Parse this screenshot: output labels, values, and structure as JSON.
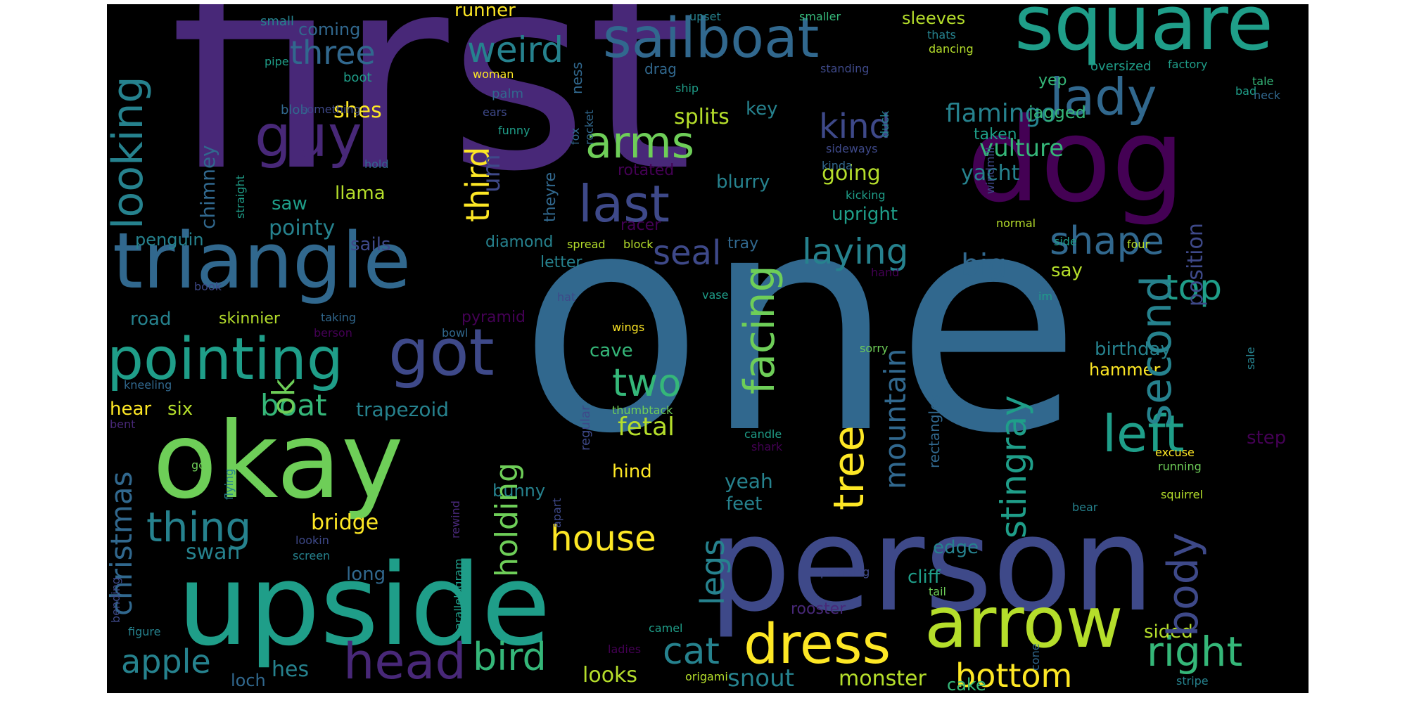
{
  "palette": {
    "background": "#000000",
    "c0": "#440154",
    "c1": "#482878",
    "c2": "#3e4989",
    "c3": "#31688e",
    "c4": "#26828e",
    "c5": "#1f9e89",
    "c6": "#35b779",
    "c7": "#6ece58",
    "c8": "#b5de2b",
    "c9": "#fde725"
  },
  "words": {
    "first": "first",
    "one": "one",
    "person": "person",
    "upside": "upside",
    "okay": "okay",
    "dog": "dog",
    "triangle": "triangle",
    "square": "square",
    "arrow": "arrow",
    "got": "got",
    "pointing": "pointing",
    "sailboat": "sailboat",
    "guy": "guy",
    "lady": "lady",
    "dress": "dress",
    "head": "head",
    "last": "last",
    "left": "left",
    "arms": "arms",
    "looking": "looking",
    "weird": "weird",
    "three": "three",
    "second": "second",
    "body": "body",
    "tree": "tree",
    "thing": "thing",
    "two": "two",
    "right": "right",
    "bottom": "bottom",
    "bird": "bird",
    "facing": "facing",
    "house": "house",
    "shape": "shape",
    "top": "top",
    "laying": "laying",
    "stingray": "stingray",
    "mountain": "mountain",
    "kind": "kind",
    "christmas": "christmas",
    "apple": "apple",
    "holding": "holding",
    "cat": "cat",
    "third": "third",
    "seal": "seal",
    "boat": "boat",
    "big": "big",
    "legs": "legs",
    "ok": "ok",
    "position": "position",
    "flamingo": "flamingo",
    "vulture": "vulture",
    "um": "um",
    "fetal": "fetal",
    "snout": "snout",
    "monster": "monster",
    "chimney": "chimney",
    "shes": "shes",
    "splits": "splits",
    "going": "going",
    "yacht": "yacht",
    "upright": "upright",
    "pointy": "pointy",
    "saw": "saw",
    "llama": "llama",
    "sails": "sails",
    "penguin": "penguin",
    "road": "road",
    "skinnier": "skinnier",
    "diamond": "diamond",
    "letter": "letter",
    "pyramid": "pyramid",
    "trapezoid": "trapezoid",
    "six": "six",
    "hear": "hear",
    "bridge": "bridge",
    "swan": "swan",
    "long": "long",
    "cave": "cave",
    "bunny": "bunny",
    "hind": "hind",
    "yeah": "yeah",
    "feet": "feet",
    "cliff": "cliff",
    "edge": "edge",
    "birthday": "birthday",
    "hammer": "hammer",
    "step": "step",
    "looks": "looks",
    "hes": "hes",
    "loch": "loch",
    "cake": "cake",
    "sided": "sided",
    "coming": "coming",
    "runner": "runner",
    "sleeves": "sleeves",
    "small": "small",
    "pipe": "pipe",
    "boot": "boot",
    "woman": "woman",
    "blob": "blob",
    "something": "something",
    "hold": "hold",
    "straight": "straight",
    "ears": "ears",
    "funny": "funny",
    "palm": "palm",
    "ness": "ness",
    "drag": "drag",
    "ship": "ship",
    "key": "key",
    "fox": "fox",
    "rocket": "rocket",
    "theyre": "theyre",
    "rotated": "rotated",
    "blurry": "blurry",
    "racer": "racer",
    "spread": "spread",
    "block": "block",
    "tray": "tray",
    "upset": "upset",
    "smaller": "smaller",
    "standing": "standing",
    "thats": "thats",
    "dancing": "dancing",
    "oversized": "oversized",
    "factory": "factory",
    "bad": "bad",
    "tale": "tale",
    "neck": "neck",
    "yep": "yep",
    "jagged": "jagged",
    "taken": "taken",
    "duck": "duck",
    "windmill": "windmill",
    "sideways": "sideways",
    "kinda": "kinda",
    "kicking": "kicking",
    "normal": "normal",
    "four": "four",
    "side": "side",
    "hand": "hand",
    "say": "say",
    "im": "im",
    "sale": "sale",
    "book": "book",
    "hat": "hat",
    "vase": "vase",
    "taking": "taking",
    "berson": "berson",
    "bowl": "bowl",
    "wings": "wings",
    "sorry": "sorry",
    "regular": "regular",
    "thumbtack": "thumbtack",
    "candle": "candle",
    "shark": "shark",
    "rectangles": "rectangles",
    "excuse": "excuse",
    "running": "running",
    "kneeling": "kneeling",
    "bent": "bent",
    "go": "go",
    "flying": "flying",
    "rewind": "rewind",
    "lookin": "lookin",
    "screen": "screen",
    "parallelogram": "parallelogram",
    "apart": "apart",
    "bending": "bending",
    "figure": "figure",
    "ladies": "ladies",
    "origami": "origami",
    "camel": "camel",
    "cone": "cone",
    "stripe": "stripe",
    "prancing": "prancing",
    "tail": "tail",
    "rooster": "rooster",
    "bear": "bear",
    "squirrel": "squirrel"
  }
}
